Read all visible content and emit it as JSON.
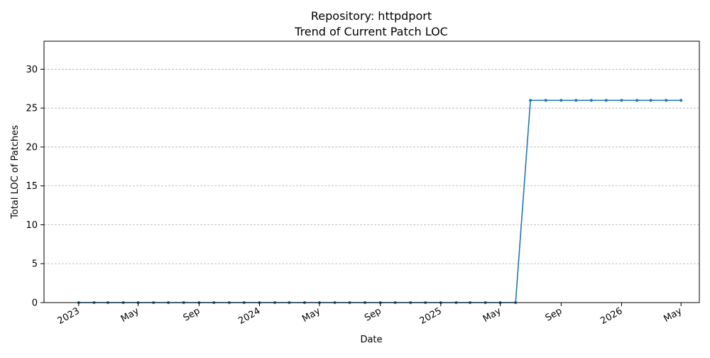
{
  "chart_data": {
    "type": "line",
    "title": "Repository: httpdport",
    "subtitle": "Trend of Current Patch LOC",
    "xlabel": "Date",
    "ylabel": "Total LOC of Patches",
    "ylim": [
      0,
      33.6
    ],
    "yticks": [
      0,
      5,
      10,
      15,
      20,
      25,
      30
    ],
    "xlim": [
      "2022-10-23",
      "2026-06-07"
    ],
    "xticks": [
      {
        "date": "2023-01-01",
        "label": "2023"
      },
      {
        "date": "2023-05-01",
        "label": "May"
      },
      {
        "date": "2023-09-01",
        "label": "Sep"
      },
      {
        "date": "2024-01-01",
        "label": "2024"
      },
      {
        "date": "2024-05-01",
        "label": "May"
      },
      {
        "date": "2024-09-01",
        "label": "Sep"
      },
      {
        "date": "2025-01-01",
        "label": "2025"
      },
      {
        "date": "2025-05-01",
        "label": "May"
      },
      {
        "date": "2025-09-01",
        "label": "Sep"
      },
      {
        "date": "2026-01-01",
        "label": "2026"
      },
      {
        "date": "2026-05-01",
        "label": "May"
      }
    ],
    "grid": "y",
    "color": "#1f77b4",
    "series": [
      {
        "x": [
          "2023-01-01",
          "2023-02-01",
          "2023-03-01",
          "2023-04-01",
          "2023-05-01",
          "2023-06-01",
          "2023-07-01",
          "2023-08-01",
          "2023-09-01",
          "2023-10-01",
          "2023-11-01",
          "2023-12-01",
          "2024-01-01",
          "2024-02-01",
          "2024-03-01",
          "2024-04-01",
          "2024-05-01",
          "2024-06-01",
          "2024-07-01",
          "2024-08-01",
          "2024-09-01",
          "2024-10-01",
          "2024-11-01",
          "2024-12-01",
          "2025-01-01",
          "2025-02-01",
          "2025-03-01",
          "2025-04-01",
          "2025-05-01",
          "2025-06-01",
          "2025-07-01",
          "2025-08-01",
          "2025-09-01",
          "2025-10-01",
          "2025-11-01",
          "2025-12-01",
          "2026-01-01",
          "2026-02-01",
          "2026-03-01",
          "2026-04-01",
          "2026-05-01"
        ],
        "values": [
          0,
          0,
          0,
          0,
          0,
          0,
          0,
          0,
          0,
          0,
          0,
          0,
          0,
          0,
          0,
          0,
          0,
          0,
          0,
          0,
          0,
          0,
          0,
          0,
          0,
          0,
          0,
          0,
          0,
          0,
          26,
          26,
          26,
          26,
          26,
          26,
          26,
          26,
          26,
          26,
          26
        ]
      }
    ]
  }
}
